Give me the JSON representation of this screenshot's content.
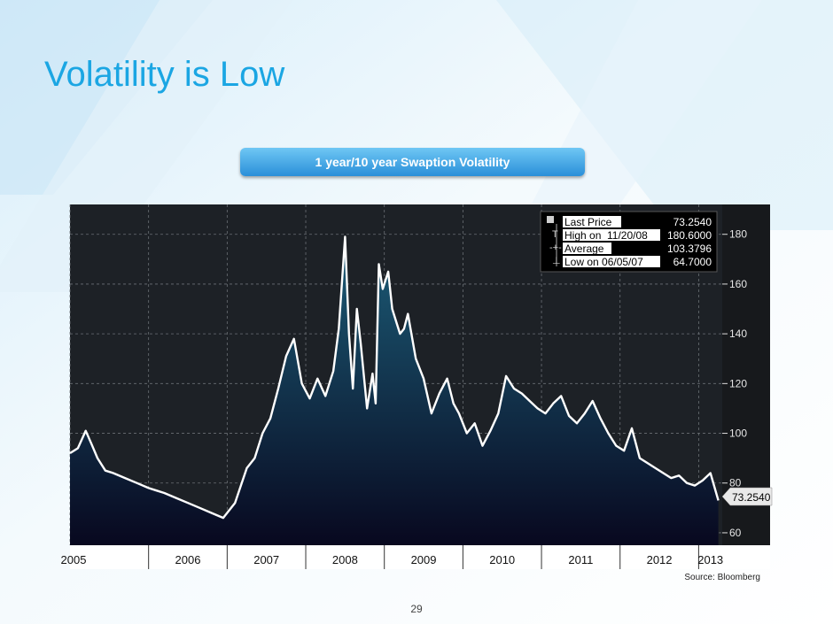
{
  "slide": {
    "title": "Volatility is Low",
    "caption": "1 year/10 year Swaption Volatility",
    "source": "Source: Bloomberg",
    "page_number": "29"
  },
  "colors": {
    "title": "#1ba6e3",
    "caption_top": "#6fc7f4",
    "caption_bottom": "#2a8fd9",
    "chart_bg": "#1d2126",
    "series_line": "#ffffff",
    "area_top": "#1c5d78",
    "area_bottom": "#08081f"
  },
  "chart_data": {
    "type": "area",
    "title": "1 year/10 year Swaption Volatility",
    "x_axis": "time",
    "xlim": [
      2005.0,
      2013.3
    ],
    "ylim": [
      55,
      192
    ],
    "y_ticks": [
      60,
      80,
      100,
      120,
      140,
      160,
      180
    ],
    "x_tick_labels": [
      "2005",
      "2006",
      "2007",
      "2008",
      "2009",
      "2010",
      "2011",
      "2012",
      "2013"
    ],
    "x_tick_positions": [
      2005.0,
      2006.0,
      2007.0,
      2008.0,
      2009.0,
      2010.0,
      2011.0,
      2012.0,
      2013.0
    ],
    "y_axis_side": "right",
    "grid": true,
    "last_value_label": "73.2540",
    "legend": {
      "placement": "top-right",
      "entries": [
        {
          "label": "Last Price",
          "value": "73.2540"
        },
        {
          "label": "High on",
          "date": "11/20/08",
          "value": "180.6000"
        },
        {
          "label": "Average",
          "value": "103.3796"
        },
        {
          "label": "Low on 06/05/07",
          "value": "64.7000"
        }
      ]
    },
    "series": [
      {
        "x": [
          2005.0,
          2005.1,
          2005.2,
          2005.27,
          2005.35,
          2005.45,
          2005.55,
          2005.7,
          2005.85,
          2006.0,
          2006.1,
          2006.2,
          2006.35,
          2006.5,
          2006.65,
          2006.8,
          2006.95,
          2007.1,
          2007.25,
          2007.35,
          2007.45,
          2007.55,
          2007.65,
          2007.75,
          2007.85,
          2007.95,
          2008.05,
          2008.15,
          2008.25,
          2008.35,
          2008.42,
          2008.5,
          2008.55,
          2008.6,
          2008.65,
          2008.7,
          2008.78,
          2008.85,
          2008.89,
          2008.93,
          2008.98,
          2009.05,
          2009.1,
          2009.15,
          2009.2,
          2009.25,
          2009.3,
          2009.4,
          2009.5,
          2009.6,
          2009.7,
          2009.8,
          2009.88,
          2009.95,
          2010.05,
          2010.15,
          2010.25,
          2010.35,
          2010.45,
          2010.55,
          2010.65,
          2010.75,
          2010.85,
          2010.95,
          2011.05,
          2011.15,
          2011.25,
          2011.35,
          2011.45,
          2011.55,
          2011.65,
          2011.75,
          2011.85,
          2011.95,
          2012.05,
          2012.15,
          2012.25,
          2012.35,
          2012.45,
          2012.55,
          2012.65,
          2012.75,
          2012.85,
          2012.95,
          2013.05,
          2013.15,
          2013.25
        ],
        "y": [
          92,
          94,
          101,
          96,
          90,
          85,
          84,
          82,
          80,
          78,
          77,
          76,
          74,
          72,
          70,
          68,
          66,
          72,
          86,
          90,
          100,
          106,
          118,
          131,
          138,
          120,
          114,
          122,
          115,
          125,
          142,
          179,
          140,
          118,
          150,
          136,
          110,
          124,
          112,
          168,
          158,
          165,
          150,
          145,
          140,
          142,
          148,
          130,
          122,
          108,
          116,
          122,
          112,
          108,
          100,
          104,
          95,
          101,
          108,
          123,
          118,
          116,
          113,
          110,
          108,
          112,
          115,
          107,
          104,
          108,
          113,
          106,
          100,
          95,
          93,
          102,
          90,
          88,
          86,
          84,
          82,
          83,
          80,
          79,
          81,
          84,
          73
        ]
      }
    ]
  }
}
